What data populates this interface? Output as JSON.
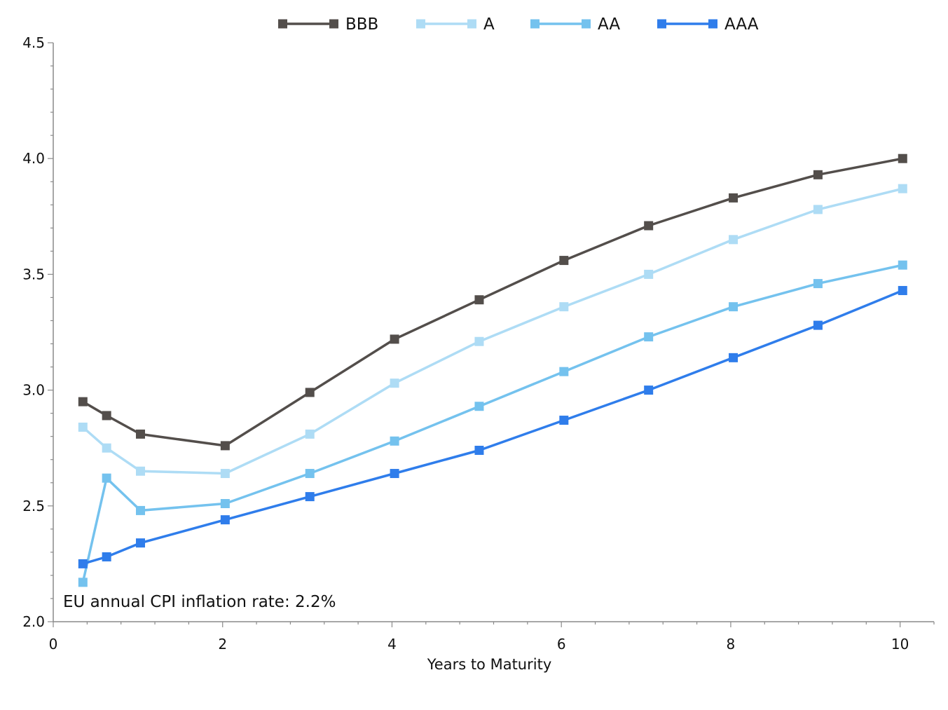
{
  "chart_data": {
    "type": "line",
    "title": "",
    "xlabel": "Years to Maturity",
    "ylabel": "",
    "xlim": [
      0,
      10.4
    ],
    "ylim": [
      2.0,
      4.5
    ],
    "x_ticks": [
      0,
      2,
      4,
      6,
      8,
      10
    ],
    "x_tick_labels": [
      "0",
      "2",
      "4",
      "6",
      "8",
      "10"
    ],
    "y_ticks": [
      2.0,
      2.5,
      3.0,
      3.5,
      4.0,
      4.5
    ],
    "y_tick_labels": [
      "2.0",
      "2.5",
      "3.0",
      "3.5",
      "4.0",
      "4.5"
    ],
    "grid": false,
    "legend_position": "top-center",
    "annotation": "EU annual CPI inflation rate: 2.2%",
    "x": [
      0.35,
      0.63,
      1.03,
      2.03,
      3.03,
      4.03,
      5.03,
      6.03,
      7.03,
      8.03,
      9.03,
      10.03
    ],
    "series": [
      {
        "name": "BBB",
        "color": "#534e4b",
        "values": [
          2.95,
          2.89,
          2.81,
          2.76,
          2.99,
          3.22,
          3.39,
          3.56,
          3.71,
          3.83,
          3.93,
          4.0
        ]
      },
      {
        "name": "A",
        "color": "#aedcf5",
        "values": [
          2.84,
          2.75,
          2.65,
          2.64,
          2.81,
          3.03,
          3.21,
          3.36,
          3.5,
          3.65,
          3.78,
          3.87
        ]
      },
      {
        "name": "AA",
        "color": "#74c2ee",
        "values": [
          2.17,
          2.62,
          2.48,
          2.51,
          2.64,
          2.78,
          2.93,
          3.08,
          3.23,
          3.36,
          3.46,
          3.54
        ]
      },
      {
        "name": "AAA",
        "color": "#2f7deb",
        "values": [
          2.25,
          2.28,
          2.34,
          2.44,
          2.54,
          2.64,
          2.74,
          2.87,
          3.0,
          3.14,
          3.28,
          3.43
        ]
      }
    ]
  }
}
